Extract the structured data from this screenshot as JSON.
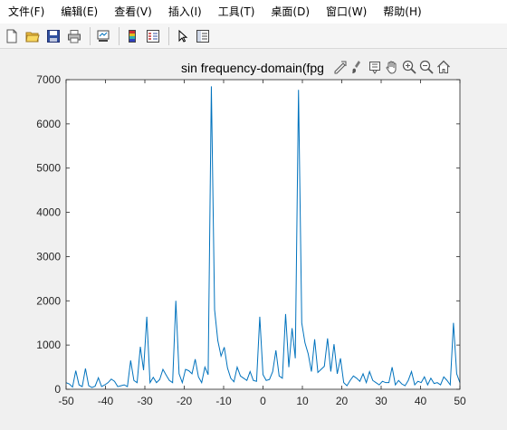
{
  "menu": {
    "items": [
      "文件(F)",
      "编辑(E)",
      "查看(V)",
      "插入(I)",
      "工具(T)",
      "桌面(D)",
      "窗口(W)",
      "帮助(H)"
    ]
  },
  "toolbar": {
    "buttons": [
      "new-figure-icon",
      "open-file-icon",
      "save-icon",
      "print-icon",
      "link-plot-icon",
      "insert-colorbar-icon",
      "insert-legend-icon",
      "edit-plot-arrow-icon",
      "property-inspector-icon"
    ]
  },
  "axes_toolbar": {
    "buttons": [
      "export-icon",
      "brush-icon",
      "data-tips-icon",
      "pan-hand-icon",
      "zoom-in-icon",
      "zoom-out-icon",
      "home-icon"
    ]
  },
  "colors": {
    "line": "#0072bd",
    "axes_bg": "#ffffff",
    "figure_bg": "#f0f0f0"
  },
  "chart_data": {
    "type": "line",
    "title": "sin frequency-domain(fpg",
    "xlabel": "",
    "ylabel": "",
    "xlim": [
      -50,
      50
    ],
    "ylim": [
      0,
      7000
    ],
    "xticks": [
      "-50",
      "-40",
      "-30",
      "-20",
      "-10",
      "0",
      "10",
      "20",
      "30",
      "40",
      "50"
    ],
    "yticks": [
      "0",
      "1000",
      "2000",
      "3000",
      "4000",
      "5000",
      "6000",
      "7000"
    ],
    "grid": false,
    "x_start": -50,
    "x_step": 1,
    "series": [
      {
        "values": [
          150,
          120,
          50,
          420,
          100,
          60,
          470,
          80,
          40,
          70,
          260,
          60,
          100,
          150,
          230,
          180,
          60,
          80,
          100,
          60,
          650,
          200,
          150,
          960,
          430,
          1640,
          150,
          270,
          150,
          220,
          450,
          320,
          200,
          150,
          2000,
          350,
          150,
          450,
          420,
          350,
          680,
          280,
          150,
          500,
          330,
          6850,
          1800,
          1100,
          750,
          950,
          480,
          250,
          170,
          500,
          300,
          250,
          200,
          400,
          200,
          180,
          1640,
          330,
          200,
          220,
          400,
          880,
          300,
          250,
          1700,
          500,
          1380,
          700,
          6770,
          1500,
          1050,
          800,
          400,
          1130,
          380,
          450,
          520,
          1150,
          400,
          1020,
          350,
          700,
          150,
          80,
          200,
          300,
          250,
          180,
          350,
          150,
          400,
          200,
          150,
          100,
          180,
          150,
          150,
          500,
          100,
          200,
          120,
          80,
          200,
          400,
          100,
          180,
          150,
          280,
          100,
          250,
          130,
          150,
          100,
          280,
          200,
          100,
          1500,
          350,
          150
        ]
      }
    ]
  }
}
